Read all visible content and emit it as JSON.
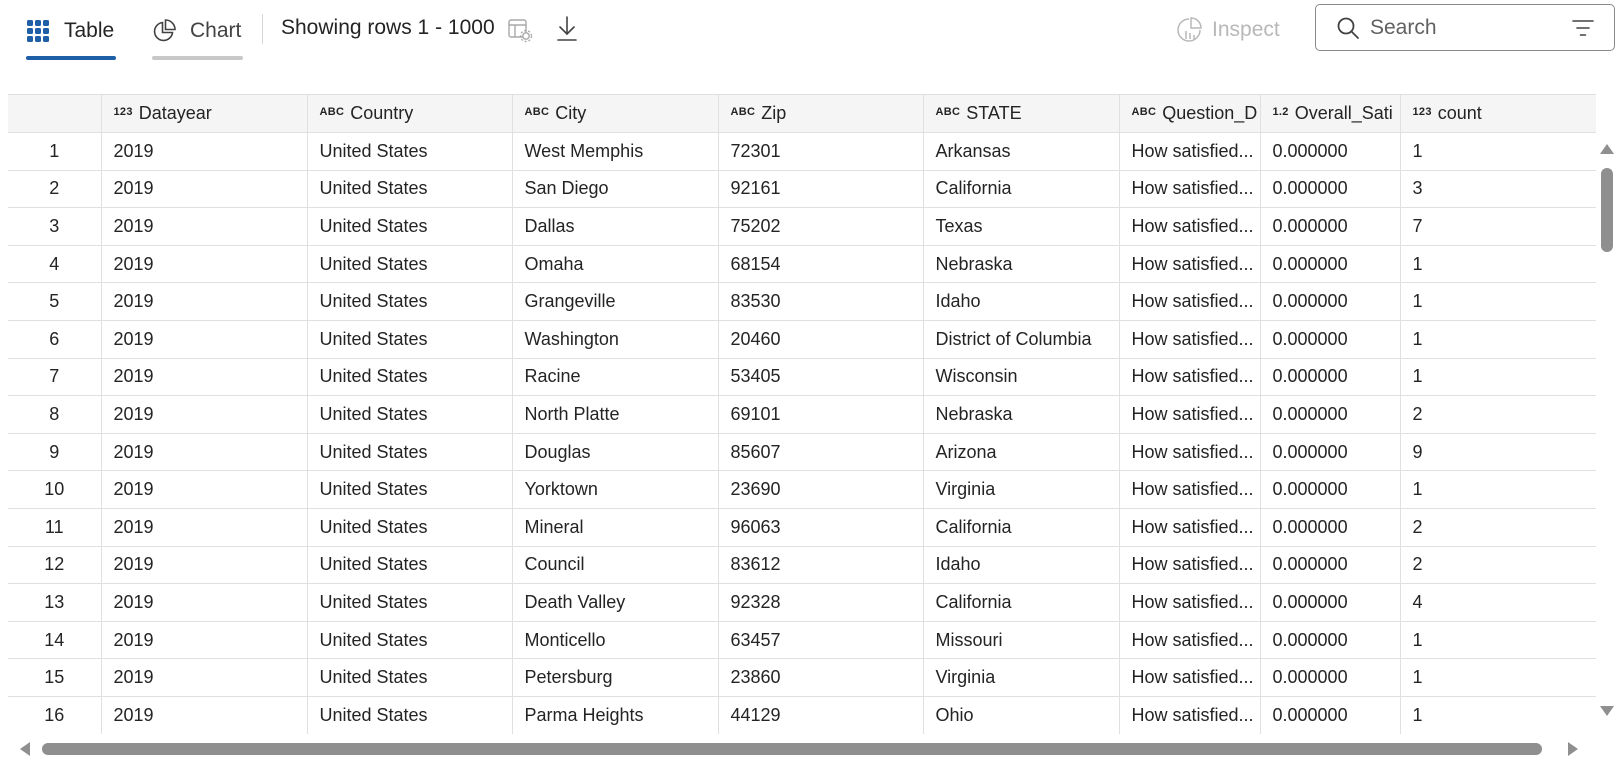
{
  "toolbar": {
    "tabs": [
      {
        "label": "Table",
        "icon": "grid-icon",
        "selected": true
      },
      {
        "label": "Chart",
        "icon": "pie-chart-icon",
        "selected": false
      }
    ],
    "rows_label": "Showing rows 1 - 1000",
    "inspect_label": "Inspect",
    "search_placeholder": "Search",
    "accent_color": "#1f5fa8"
  },
  "table": {
    "columns": [
      {
        "type": "",
        "name": ""
      },
      {
        "type": "123",
        "name": "Datayear"
      },
      {
        "type": "ABC",
        "name": "Country"
      },
      {
        "type": "ABC",
        "name": "City"
      },
      {
        "type": "ABC",
        "name": "Zip"
      },
      {
        "type": "ABC",
        "name": "STATE"
      },
      {
        "type": "ABC",
        "name": "Question_D"
      },
      {
        "type": "1.2",
        "name": "Overall_Sati"
      },
      {
        "type": "123",
        "name": "count"
      }
    ],
    "rows": [
      [
        "1",
        "2019",
        "United States",
        "West Memphis",
        "72301",
        "Arkansas",
        "How satisfied...",
        "0.000000",
        "1"
      ],
      [
        "2",
        "2019",
        "United States",
        "San Diego",
        "92161",
        "California",
        "How satisfied...",
        "0.000000",
        "3"
      ],
      [
        "3",
        "2019",
        "United States",
        "Dallas",
        "75202",
        "Texas",
        "How satisfied...",
        "0.000000",
        "7"
      ],
      [
        "4",
        "2019",
        "United States",
        "Omaha",
        "68154",
        "Nebraska",
        "How satisfied...",
        "0.000000",
        "1"
      ],
      [
        "5",
        "2019",
        "United States",
        "Grangeville",
        "83530",
        "Idaho",
        "How satisfied...",
        "0.000000",
        "1"
      ],
      [
        "6",
        "2019",
        "United States",
        "Washington",
        "20460",
        "District of Columbia",
        "How satisfied...",
        "0.000000",
        "1"
      ],
      [
        "7",
        "2019",
        "United States",
        "Racine",
        "53405",
        "Wisconsin",
        "How satisfied...",
        "0.000000",
        "1"
      ],
      [
        "8",
        "2019",
        "United States",
        "North Platte",
        "69101",
        "Nebraska",
        "How satisfied...",
        "0.000000",
        "2"
      ],
      [
        "9",
        "2019",
        "United States",
        "Douglas",
        "85607",
        "Arizona",
        "How satisfied...",
        "0.000000",
        "9"
      ],
      [
        "10",
        "2019",
        "United States",
        "Yorktown",
        "23690",
        "Virginia",
        "How satisfied...",
        "0.000000",
        "1"
      ],
      [
        "11",
        "2019",
        "United States",
        "Mineral",
        "96063",
        "California",
        "How satisfied...",
        "0.000000",
        "2"
      ],
      [
        "12",
        "2019",
        "United States",
        "Council",
        "83612",
        "Idaho",
        "How satisfied...",
        "0.000000",
        "2"
      ],
      [
        "13",
        "2019",
        "United States",
        "Death Valley",
        "92328",
        "California",
        "How satisfied...",
        "0.000000",
        "4"
      ],
      [
        "14",
        "2019",
        "United States",
        "Monticello",
        "63457",
        "Missouri",
        "How satisfied...",
        "0.000000",
        "1"
      ],
      [
        "15",
        "2019",
        "United States",
        "Petersburg",
        "23860",
        "Virginia",
        "How satisfied...",
        "0.000000",
        "1"
      ],
      [
        "16",
        "2019",
        "United States",
        "Parma Heights",
        "44129",
        "Ohio",
        "How satisfied...",
        "0.000000",
        "1"
      ]
    ]
  }
}
